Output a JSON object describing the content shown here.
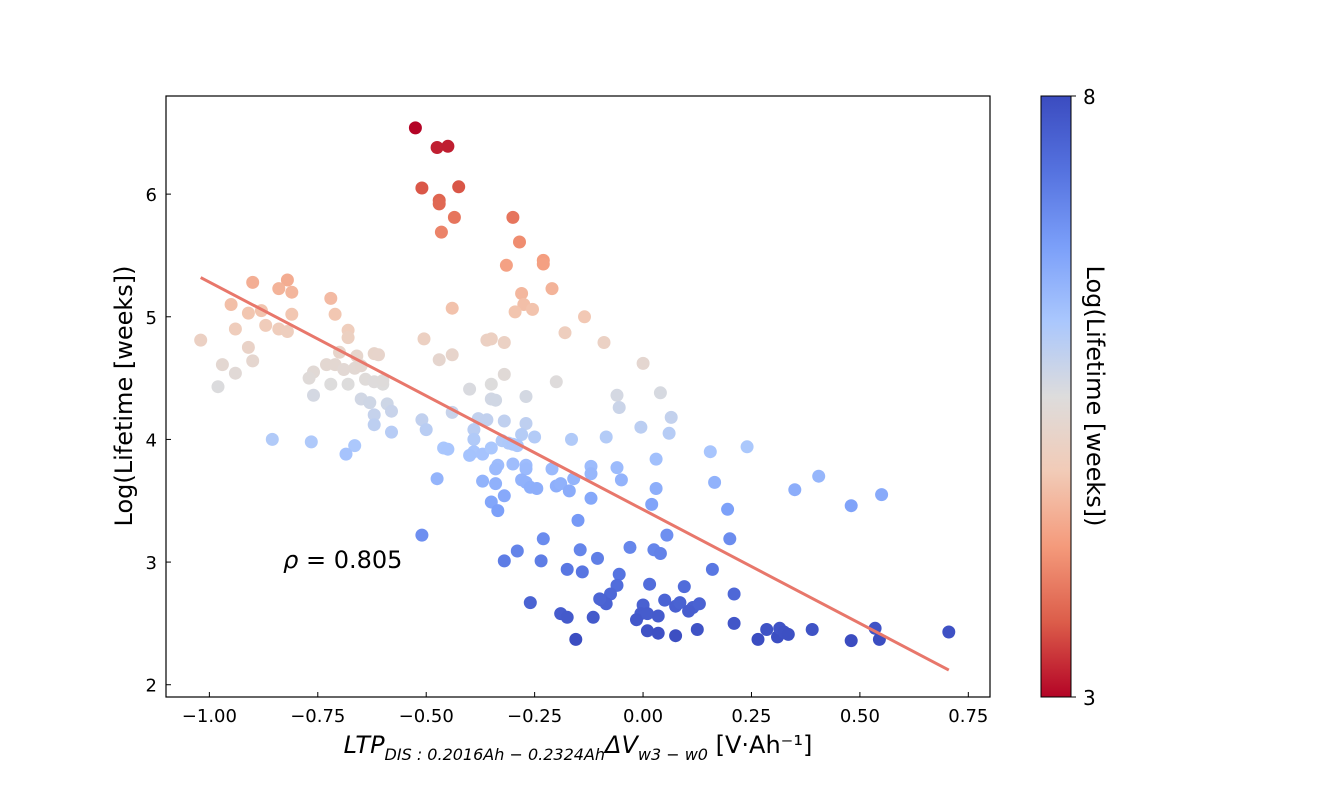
{
  "chart_data": {
    "type": "scatter",
    "title": "",
    "xlabel": {
      "main": "LTP",
      "sub1": "DIS : 0.2016Ah − 0.2324Ah",
      "delta": "ΔV",
      "sub2": "w3 − w0",
      "unit": " [V·Ah⁻¹]"
    },
    "ylabel": "Log(Lifetime [weeks])",
    "xlim": [
      -1.1,
      0.8
    ],
    "ylim": [
      1.9,
      6.8
    ],
    "x_ticks": [
      -1.0,
      -0.75,
      -0.5,
      -0.25,
      0.0,
      0.25,
      0.5,
      0.75
    ],
    "x_tick_labels": [
      "−1.00",
      "−0.75",
      "−0.50",
      "−0.25",
      "0.00",
      "0.25",
      "0.50",
      "0.75"
    ],
    "y_ticks": [
      2,
      3,
      4,
      5,
      6
    ],
    "y_tick_labels": [
      "2",
      "3",
      "4",
      "5",
      "6"
    ],
    "grid": false,
    "annotation": {
      "symbol": "ρ",
      "text": " = 0.805",
      "x": -0.83,
      "y": 2.95
    },
    "regression_line": {
      "x": [
        -1.02,
        0.705
      ],
      "y": [
        5.32,
        2.12
      ],
      "color": "#e8776b"
    },
    "colorbar": {
      "label": "Log(Lifetime [weeks])",
      "min": 3,
      "max": 8,
      "tick_labels": [
        "3",
        "8"
      ],
      "colormap": [
        "#b40426",
        "#dc5d4a",
        "#f49a7b",
        "#f2cbb7",
        "#dddcdc",
        "#aac7fd",
        "#7b9ff9",
        "#5572df",
        "#3b4cc0"
      ]
    },
    "series": [
      {
        "points": [
          [
            -0.525,
            6.54
          ],
          [
            -0.475,
            6.38
          ],
          [
            -0.45,
            6.39
          ],
          [
            -0.51,
            6.05
          ],
          [
            -0.425,
            6.06
          ],
          [
            -0.47,
            5.95
          ],
          [
            -0.47,
            5.92
          ],
          [
            -0.435,
            5.81
          ],
          [
            -0.465,
            5.69
          ],
          [
            -0.3,
            5.81
          ],
          [
            -0.285,
            5.61
          ],
          [
            -0.315,
            5.42
          ],
          [
            -0.23,
            5.46
          ],
          [
            -0.23,
            5.43
          ],
          [
            -0.28,
            5.19
          ],
          [
            -0.275,
            5.1
          ],
          [
            -0.255,
            5.06
          ],
          [
            -0.295,
            5.04
          ],
          [
            -0.21,
            5.23
          ],
          [
            -0.18,
            4.87
          ],
          [
            -0.135,
            5.0
          ],
          [
            -0.09,
            4.79
          ],
          [
            -0.44,
            5.07
          ],
          [
            -0.505,
            4.82
          ],
          [
            -0.36,
            4.81
          ],
          [
            -0.35,
            4.82
          ],
          [
            -0.32,
            4.79
          ],
          [
            -0.47,
            4.65
          ],
          [
            -0.44,
            4.69
          ],
          [
            -1.02,
            4.81
          ],
          [
            -0.9,
            5.28
          ],
          [
            -0.82,
            5.3
          ],
          [
            -0.81,
            5.2
          ],
          [
            -0.84,
            5.23
          ],
          [
            -0.95,
            5.1
          ],
          [
            -0.88,
            5.05
          ],
          [
            -0.91,
            5.03
          ],
          [
            -0.81,
            5.02
          ],
          [
            -0.72,
            5.15
          ],
          [
            -0.71,
            5.02
          ],
          [
            -0.94,
            4.9
          ],
          [
            -0.87,
            4.93
          ],
          [
            -0.84,
            4.9
          ],
          [
            -0.82,
            4.88
          ],
          [
            -0.68,
            4.89
          ],
          [
            -0.68,
            4.83
          ],
          [
            -0.91,
            4.75
          ],
          [
            -0.9,
            4.64
          ],
          [
            -0.97,
            4.61
          ],
          [
            -0.94,
            4.54
          ],
          [
            -0.98,
            4.43
          ],
          [
            -0.7,
            4.71
          ],
          [
            -0.66,
            4.68
          ],
          [
            -0.62,
            4.7
          ],
          [
            -0.61,
            4.69
          ],
          [
            -0.73,
            4.61
          ],
          [
            -0.71,
            4.61
          ],
          [
            -0.69,
            4.57
          ],
          [
            -0.665,
            4.58
          ],
          [
            -0.65,
            4.6
          ],
          [
            -0.76,
            4.55
          ],
          [
            -0.77,
            4.5
          ],
          [
            -0.72,
            4.45
          ],
          [
            -0.68,
            4.45
          ],
          [
            -0.64,
            4.49
          ],
          [
            -0.62,
            4.47
          ],
          [
            -0.6,
            4.45
          ],
          [
            -0.6,
            4.48
          ],
          [
            -0.76,
            4.36
          ],
          [
            -0.65,
            4.33
          ],
          [
            -0.63,
            4.3
          ],
          [
            -0.59,
            4.29
          ],
          [
            -0.58,
            4.23
          ],
          [
            -0.62,
            4.2
          ],
          [
            -0.62,
            4.12
          ],
          [
            -0.58,
            4.06
          ],
          [
            -0.51,
            4.16
          ],
          [
            -0.5,
            4.08
          ],
          [
            -0.4,
            4.41
          ],
          [
            -0.35,
            4.45
          ],
          [
            -0.32,
            4.53
          ],
          [
            -0.2,
            4.47
          ],
          [
            -0.06,
            4.36
          ],
          [
            -0.055,
            4.26
          ],
          [
            0.0,
            4.62
          ],
          [
            0.04,
            4.38
          ],
          [
            -0.35,
            4.33
          ],
          [
            -0.34,
            4.32
          ],
          [
            -0.27,
            4.35
          ],
          [
            -0.44,
            4.22
          ],
          [
            -0.38,
            4.17
          ],
          [
            -0.36,
            4.16
          ],
          [
            -0.32,
            4.15
          ],
          [
            -0.27,
            4.13
          ],
          [
            -0.39,
            4.08
          ],
          [
            -0.28,
            4.04
          ],
          [
            -0.25,
            4.02
          ],
          [
            -0.39,
            4.0
          ],
          [
            -0.325,
            3.99
          ],
          [
            -0.31,
            3.97
          ],
          [
            -0.3,
            3.96
          ],
          [
            -0.29,
            3.95
          ],
          [
            -0.39,
            3.9
          ],
          [
            -0.37,
            3.88
          ],
          [
            -0.4,
            3.87
          ],
          [
            -0.46,
            3.93
          ],
          [
            -0.45,
            3.92
          ],
          [
            -0.35,
            3.93
          ],
          [
            -0.855,
            4.0
          ],
          [
            -0.765,
            3.98
          ],
          [
            -0.665,
            3.95
          ],
          [
            -0.685,
            3.88
          ],
          [
            -0.165,
            4.0
          ],
          [
            -0.085,
            4.02
          ],
          [
            -0.005,
            4.1
          ],
          [
            0.06,
            4.05
          ],
          [
            0.065,
            4.18
          ],
          [
            0.155,
            3.9
          ],
          [
            0.24,
            3.94
          ],
          [
            -0.335,
            3.79
          ],
          [
            -0.3,
            3.8
          ],
          [
            -0.27,
            3.79
          ],
          [
            -0.27,
            3.76
          ],
          [
            -0.34,
            3.76
          ],
          [
            -0.21,
            3.76
          ],
          [
            -0.12,
            3.78
          ],
          [
            -0.12,
            3.72
          ],
          [
            -0.06,
            3.77
          ],
          [
            0.03,
            3.84
          ],
          [
            -0.05,
            3.67
          ],
          [
            -0.2,
            3.62
          ],
          [
            -0.19,
            3.64
          ],
          [
            -0.16,
            3.68
          ],
          [
            -0.37,
            3.66
          ],
          [
            -0.34,
            3.64
          ],
          [
            -0.28,
            3.67
          ],
          [
            -0.27,
            3.65
          ],
          [
            -0.26,
            3.61
          ],
          [
            -0.245,
            3.6
          ],
          [
            -0.17,
            3.58
          ],
          [
            -0.475,
            3.68
          ],
          [
            -0.35,
            3.49
          ],
          [
            -0.335,
            3.42
          ],
          [
            -0.32,
            3.54
          ],
          [
            -0.12,
            3.52
          ],
          [
            0.02,
            3.47
          ],
          [
            0.03,
            3.6
          ],
          [
            0.165,
            3.65
          ],
          [
            0.195,
            3.43
          ],
          [
            0.35,
            3.59
          ],
          [
            0.405,
            3.7
          ],
          [
            0.48,
            3.46
          ],
          [
            0.55,
            3.55
          ],
          [
            -0.51,
            3.22
          ],
          [
            -0.15,
            3.34
          ],
          [
            -0.23,
            3.19
          ],
          [
            0.055,
            3.22
          ],
          [
            0.2,
            3.19
          ],
          [
            -0.29,
            3.09
          ],
          [
            -0.145,
            3.1
          ],
          [
            -0.105,
            3.03
          ],
          [
            -0.03,
            3.12
          ],
          [
            -0.32,
            3.01
          ],
          [
            -0.235,
            3.01
          ],
          [
            0.025,
            3.1
          ],
          [
            0.04,
            3.07
          ],
          [
            0.16,
            2.94
          ],
          [
            -0.175,
            2.94
          ],
          [
            -0.14,
            2.92
          ],
          [
            -0.055,
            2.9
          ],
          [
            -0.06,
            2.81
          ],
          [
            0.015,
            2.82
          ],
          [
            0.095,
            2.8
          ],
          [
            -0.075,
            2.74
          ],
          [
            -0.095,
            2.69
          ],
          [
            -0.085,
            2.66
          ],
          [
            -0.1,
            2.7
          ],
          [
            0.21,
            2.74
          ],
          [
            -0.26,
            2.67
          ],
          [
            0.0,
            2.65
          ],
          [
            0.05,
            2.69
          ],
          [
            0.075,
            2.64
          ],
          [
            0.085,
            2.67
          ],
          [
            0.115,
            2.63
          ],
          [
            0.13,
            2.66
          ],
          [
            0.105,
            2.6
          ],
          [
            -0.005,
            2.58
          ],
          [
            -0.015,
            2.53
          ],
          [
            0.01,
            2.58
          ],
          [
            0.035,
            2.56
          ],
          [
            -0.19,
            2.58
          ],
          [
            -0.175,
            2.55
          ],
          [
            -0.115,
            2.55
          ],
          [
            0.21,
            2.5
          ],
          [
            -0.155,
            2.37
          ],
          [
            0.01,
            2.44
          ],
          [
            0.035,
            2.42
          ],
          [
            0.075,
            2.4
          ],
          [
            0.125,
            2.45
          ],
          [
            0.265,
            2.37
          ],
          [
            0.285,
            2.45
          ],
          [
            0.31,
            2.39
          ],
          [
            0.315,
            2.46
          ],
          [
            0.325,
            2.43
          ],
          [
            0.335,
            2.41
          ],
          [
            0.39,
            2.45
          ],
          [
            0.48,
            2.36
          ],
          [
            0.535,
            2.46
          ],
          [
            0.545,
            2.37
          ],
          [
            0.705,
            2.43
          ]
        ]
      }
    ]
  }
}
